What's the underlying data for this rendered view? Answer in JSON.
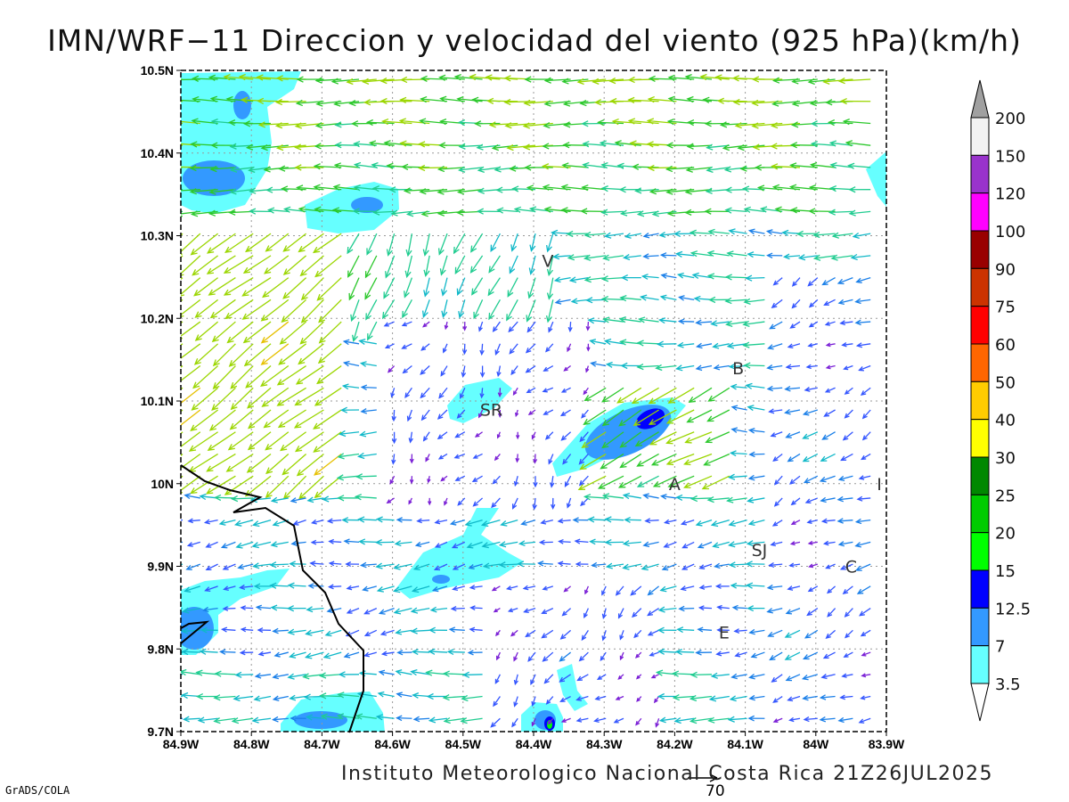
{
  "title": "IMN/WRF−11 Direccion y velocidad del viento (925 hPa)(km/h)",
  "footer": "Instituto Meteorologico Nacional Costa Rica 21Z26JUL2025",
  "credit": "GrADS/COLA",
  "reference_vector": "70",
  "axes": {
    "x_ticks": [
      "84.9W",
      "84.8W",
      "84.7W",
      "84.6W",
      "84.5W",
      "84.4W",
      "84.3W",
      "84.2W",
      "84.1W",
      "84W",
      "83.9W"
    ],
    "y_ticks": [
      "10.5N",
      "10.4N",
      "10.3N",
      "10.2N",
      "10.1N",
      "10N",
      "9.9N",
      "9.8N",
      "9.7N"
    ],
    "lon_range": [
      -84.9,
      -83.9
    ],
    "lat_range": [
      9.7,
      10.5
    ],
    "grid": true
  },
  "cities": [
    {
      "label": "V",
      "lon": -84.38,
      "lat": 10.27
    },
    {
      "label": "SR",
      "lon": -84.46,
      "lat": 10.09
    },
    {
      "label": "B",
      "lon": -84.11,
      "lat": 10.14
    },
    {
      "label": "A",
      "lon": -84.2,
      "lat": 10.0
    },
    {
      "label": "I",
      "lon": -83.91,
      "lat": 10.0
    },
    {
      "label": "SJ",
      "lon": -84.08,
      "lat": 9.92
    },
    {
      "label": "C",
      "lon": -83.95,
      "lat": 9.9
    },
    {
      "label": "E",
      "lon": -84.13,
      "lat": 9.82
    }
  ],
  "colorbar": {
    "labels": [
      "200",
      "150",
      "120",
      "100",
      "90",
      "75",
      "60",
      "50",
      "40",
      "30",
      "25",
      "20",
      "15",
      "12.5",
      "7",
      "3.5"
    ],
    "colors": [
      "#a0a0a0",
      "#f2f2f2",
      "#9933cc",
      "#ff00ff",
      "#990000",
      "#cc3300",
      "#ff0000",
      "#ff6600",
      "#ffcc00",
      "#ffff00",
      "#008800",
      "#00cc00",
      "#00ff00",
      "#0000ff",
      "#3399ff",
      "#66ffff",
      "#ffffff"
    ]
  },
  "colors": {
    "shade_light": "#66ffff",
    "shade_mid": "#3399ff",
    "shade_dark": "#0000ff",
    "coastline": "#000000"
  }
}
